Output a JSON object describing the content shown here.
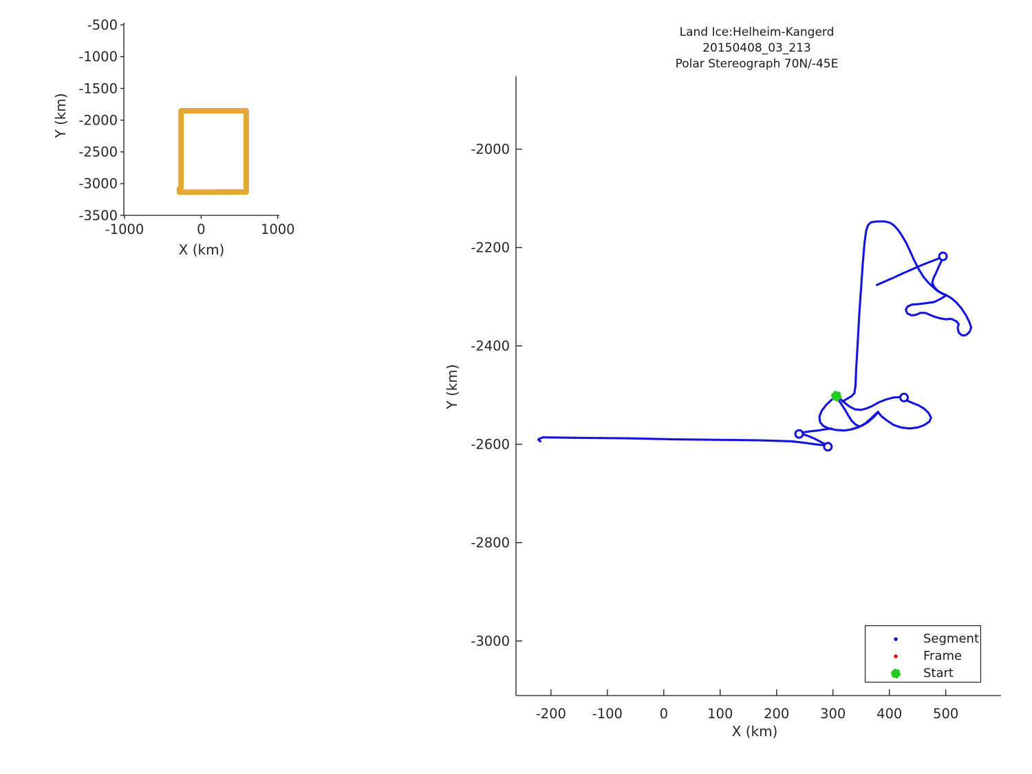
{
  "figure": {
    "background": "#ffffff"
  },
  "colors": {
    "track_blue": "#1212DD",
    "frame_red": "#DD1111",
    "start_green": "#1FCC1F",
    "coverage_orange": "#E5A836",
    "axis": "#1a1a1a",
    "text": "#262626"
  },
  "chart_data": [
    {
      "id": "overview-map",
      "type": "line",
      "title": "",
      "xlabel": "X (km)",
      "ylabel": "Y (km)",
      "xlim": [
        -1009,
        1020
      ],
      "ylim": [
        -3500,
        -465
      ],
      "xticks": [
        -1000,
        0,
        1000
      ],
      "yticks": [
        -500,
        -1000,
        -1500,
        -2000,
        -2500,
        -3000,
        -3500
      ],
      "grid": false,
      "series": [
        {
          "name": "coverage-box",
          "color": "#E5A836",
          "stroke_px": 8,
          "points": [
            [
              -262,
              -3060
            ],
            [
              -262,
              -1852
            ],
            [
              588,
              -1852
            ],
            [
              588,
              -3132
            ],
            [
              -284,
              -3136
            ],
            [
              -284,
              -3082
            ]
          ]
        }
      ]
    },
    {
      "id": "flight-track",
      "type": "scatter",
      "title": [
        "Land Ice:Helheim-Kangerd",
        "20150408_03_213",
        "Polar Stereograph 70N/-45E"
      ],
      "xlabel": "X (km)",
      "ylabel": "Y (km)",
      "xlim": [
        -262,
        598
      ],
      "ylim": [
        -3111,
        -1852
      ],
      "xticks": [
        -200,
        -100,
        0,
        100,
        200,
        300,
        400,
        500
      ],
      "yticks": [
        -2000,
        -2200,
        -2400,
        -2600,
        -2800,
        -3000
      ],
      "grid": false,
      "legend": {
        "position": "lower-right",
        "items": [
          {
            "label": "Segment",
            "marker": "dot",
            "color": "#1212DD"
          },
          {
            "label": "Frame",
            "marker": "dot",
            "color": "#DD1111"
          },
          {
            "label": "Start",
            "marker": "flower",
            "color": "#1FCC1F"
          }
        ]
      },
      "start_point": {
        "x": 306,
        "y": -2502
      },
      "turn_circles": [
        {
          "x": 291,
          "y": -2605
        },
        {
          "x": 240,
          "y": -2579
        },
        {
          "x": 426,
          "y": -2505
        },
        {
          "x": 495,
          "y": -2218
        }
      ],
      "segments": [
        {
          "name": "west-transit-line",
          "points": [
            [
              -219,
              -2594
            ],
            [
              -223,
              -2590
            ],
            [
              -214,
              -2586
            ],
            [
              -150,
              -2587
            ],
            [
              -60,
              -2588
            ],
            [
              20,
              -2590
            ],
            [
              100,
              -2591
            ],
            [
              170,
              -2592
            ],
            [
              226,
              -2594
            ],
            [
              250,
              -2597
            ],
            [
              268,
              -2600
            ],
            [
              284,
              -2602
            ]
          ]
        },
        {
          "name": "turnback-to-second-loop",
          "points": [
            [
              286,
              -2600
            ],
            [
              278,
              -2595
            ],
            [
              268,
              -2589
            ],
            [
              256,
              -2583
            ],
            [
              247,
              -2580
            ]
          ]
        },
        {
          "name": "second-loop-to-cluster",
          "points": [
            [
              246,
              -2576
            ],
            [
              258,
              -2574
            ],
            [
              274,
              -2572
            ],
            [
              290,
              -2569
            ],
            [
              299,
              -2568
            ]
          ]
        },
        {
          "name": "west-survey-loop",
          "points": [
            [
              306,
              -2502
            ],
            [
              297,
              -2510
            ],
            [
              288,
              -2520
            ],
            [
              280,
              -2532
            ],
            [
              276,
              -2544
            ],
            [
              277,
              -2555
            ],
            [
              283,
              -2563
            ],
            [
              293,
              -2568
            ],
            [
              306,
              -2571
            ],
            [
              320,
              -2572
            ],
            [
              332,
              -2570
            ],
            [
              344,
              -2566
            ],
            [
              357,
              -2558
            ],
            [
              368,
              -2547
            ],
            [
              376,
              -2538
            ],
            [
              380,
              -2534
            ]
          ]
        },
        {
          "name": "inner-strand",
          "points": [
            [
              307,
              -2505
            ],
            [
              314,
              -2517
            ],
            [
              321,
              -2529
            ],
            [
              327,
              -2541
            ],
            [
              333,
              -2552
            ],
            [
              340,
              -2560
            ],
            [
              348,
              -2564
            ]
          ]
        },
        {
          "name": "start-to-east-circle",
          "points": [
            [
              306,
              -2502
            ],
            [
              313,
              -2508
            ],
            [
              320,
              -2515
            ],
            [
              329,
              -2523
            ],
            [
              339,
              -2529
            ],
            [
              350,
              -2530
            ],
            [
              360,
              -2527
            ],
            [
              370,
              -2522
            ],
            [
              381,
              -2515
            ],
            [
              394,
              -2509
            ],
            [
              407,
              -2505
            ],
            [
              419,
              -2504
            ]
          ]
        },
        {
          "name": "east-survey-loop",
          "points": [
            [
              431,
              -2511
            ],
            [
              441,
              -2516
            ],
            [
              452,
              -2521
            ],
            [
              462,
              -2528
            ],
            [
              470,
              -2537
            ],
            [
              474,
              -2546
            ],
            [
              471,
              -2554
            ],
            [
              462,
              -2561
            ],
            [
              450,
              -2566
            ],
            [
              436,
              -2568
            ],
            [
              421,
              -2566
            ],
            [
              408,
              -2561
            ],
            [
              396,
              -2552
            ],
            [
              386,
              -2543
            ],
            [
              380,
              -2535
            ],
            [
              372,
              -2545
            ],
            [
              362,
              -2555
            ],
            [
              352,
              -2562
            ],
            [
              343,
              -2566
            ],
            [
              334,
              -2569
            ]
          ]
        },
        {
          "name": "north-transit-and-arc",
          "points": [
            [
              317,
              -2513
            ],
            [
              326,
              -2507
            ],
            [
              333,
              -2502
            ],
            [
              338,
              -2496
            ],
            [
              340,
              -2480
            ],
            [
              341,
              -2450
            ],
            [
              343,
              -2410
            ],
            [
              345,
              -2370
            ],
            [
              347,
              -2330
            ],
            [
              350,
              -2280
            ],
            [
              353,
              -2230
            ],
            [
              356,
              -2190
            ],
            [
              359,
              -2165
            ],
            [
              362,
              -2155
            ],
            [
              367,
              -2149
            ],
            [
              377,
              -2147
            ],
            [
              392,
              -2147
            ],
            [
              402,
              -2150
            ],
            [
              409,
              -2156
            ],
            [
              416,
              -2165
            ],
            [
              423,
              -2177
            ],
            [
              430,
              -2191
            ],
            [
              437,
              -2208
            ],
            [
              444,
              -2226
            ],
            [
              452,
              -2244
            ],
            [
              460,
              -2259
            ],
            [
              468,
              -2270
            ],
            [
              476,
              -2279
            ],
            [
              485,
              -2288
            ],
            [
              494,
              -2294
            ],
            [
              501,
              -2297
            ]
          ]
        },
        {
          "name": "free-diagonal-leg",
          "points": [
            [
              378,
              -2276
            ],
            [
              392,
              -2269
            ],
            [
              408,
              -2261
            ],
            [
              425,
              -2252
            ],
            [
              443,
              -2243
            ],
            [
              461,
              -2234
            ],
            [
              477,
              -2227
            ],
            [
              488,
              -2222
            ]
          ]
        },
        {
          "name": "north-circle-return",
          "points": [
            [
              493,
              -2226
            ],
            [
              488,
              -2238
            ],
            [
              483,
              -2251
            ],
            [
              478,
              -2263
            ],
            [
              476,
              -2272
            ],
            [
              480,
              -2281
            ],
            [
              487,
              -2289
            ],
            [
              495,
              -2294
            ],
            [
              501,
              -2297
            ]
          ]
        },
        {
          "name": "northeast-hook-loop",
          "points": [
            [
              501,
              -2297
            ],
            [
              510,
              -2303
            ],
            [
              519,
              -2312
            ],
            [
              528,
              -2324
            ],
            [
              536,
              -2338
            ],
            [
              542,
              -2352
            ],
            [
              545,
              -2363
            ],
            [
              542,
              -2372
            ],
            [
              536,
              -2378
            ],
            [
              529,
              -2379
            ],
            [
              523,
              -2373
            ],
            [
              521,
              -2363
            ],
            [
              523,
              -2356
            ],
            [
              519,
              -2350
            ],
            [
              510,
              -2345
            ],
            [
              500,
              -2346
            ],
            [
              490,
              -2344
            ],
            [
              481,
              -2341
            ],
            [
              472,
              -2337
            ],
            [
              464,
              -2333
            ],
            [
              455,
              -2333
            ],
            [
              447,
              -2337
            ],
            [
              439,
              -2338
            ],
            [
              432,
              -2334
            ],
            [
              429,
              -2327
            ],
            [
              432,
              -2320
            ],
            [
              440,
              -2316
            ],
            [
              452,
              -2315
            ],
            [
              466,
              -2313
            ],
            [
              479,
              -2311
            ],
            [
              490,
              -2305
            ],
            [
              497,
              -2300
            ],
            [
              501,
              -2297
            ]
          ]
        }
      ]
    }
  ]
}
